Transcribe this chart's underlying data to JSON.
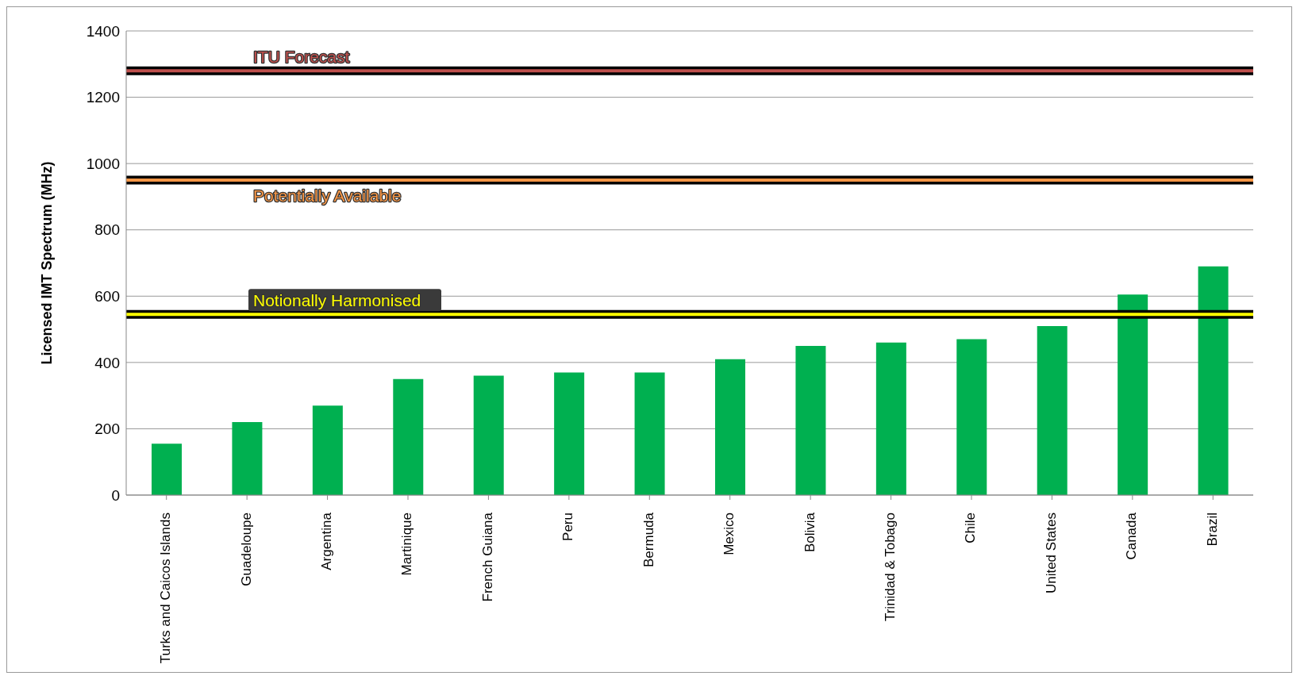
{
  "chart_data": {
    "type": "bar",
    "ylabel": "Licensed IMT Spectrum (MHz)",
    "categories": [
      "Turks and Caicos Islands",
      "Guadeloupe",
      "Argentina",
      "Martinique",
      "French Guiana",
      "Peru",
      "Bermuda",
      "Mexico",
      "Bolivia",
      "Trinidad & Tobago",
      "Chile",
      "United States",
      "Canada",
      "Brazil"
    ],
    "values": [
      155,
      220,
      270,
      350,
      360,
      370,
      370,
      410,
      450,
      460,
      470,
      510,
      605,
      690
    ],
    "color": "#00b050",
    "ylim": [
      0,
      1400
    ],
    "yticks": [
      0,
      200,
      400,
      600,
      800,
      1000,
      1200,
      1400
    ],
    "grid": "y",
    "legend": false,
    "ref_lines": [
      {
        "axis": "y",
        "value": 1280,
        "label": "ITU Forecast",
        "color": "#c0504d"
      },
      {
        "axis": "y",
        "value": 950,
        "label": "Potentially Available",
        "color": "#f79646"
      },
      {
        "axis": "y",
        "value": 545,
        "label": "Notionally Harmonised",
        "color": "#ffff00"
      }
    ]
  }
}
